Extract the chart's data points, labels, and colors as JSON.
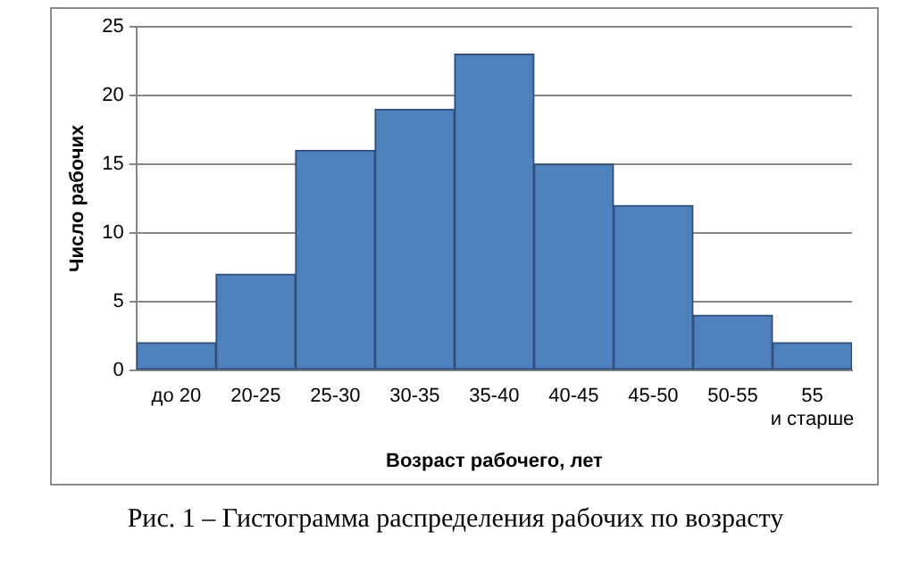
{
  "chart_data": {
    "type": "bar",
    "categories": [
      "до 20",
      "20-25",
      "25-30",
      "30-35",
      "35-40",
      "40-45",
      "45-50",
      "50-55",
      "55 и старше"
    ],
    "values": [
      2,
      7,
      16,
      19,
      23,
      15,
      12,
      4,
      2
    ],
    "color": "#4f81bd",
    "xlabel": "Возраст рабочего, лет",
    "ylabel": "Число рабочих",
    "ylim": [
      0,
      25
    ],
    "yticks": [
      0,
      5,
      10,
      15,
      20,
      25
    ],
    "grid": "y",
    "legend": false,
    "annotations": [
      "Рис. 1 – Гистограмма распределения рабочих по возрасту"
    ]
  }
}
